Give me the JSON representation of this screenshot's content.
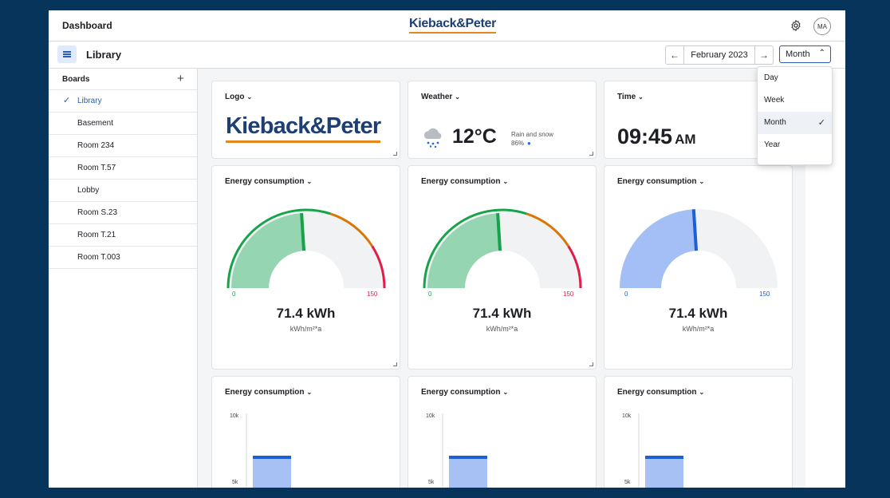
{
  "header": {
    "title": "Dashboard",
    "brand": "Kieback&Peter",
    "avatar": "MA",
    "settings_icon": "gear-icon"
  },
  "subheader": {
    "menu_icon": "hamburger-icon",
    "title": "Library",
    "date": "February 2023",
    "prev_icon": "arrow-left-icon",
    "next_icon": "arrow-right-icon",
    "period": "Month"
  },
  "period_menu": {
    "options": [
      "Day",
      "Week",
      "Month",
      "Year"
    ],
    "selected": "Month"
  },
  "sidebar": {
    "title": "Boards",
    "add_icon": "plus-icon",
    "items": [
      {
        "label": "Library",
        "active": true
      },
      {
        "label": "Basement"
      },
      {
        "label": "Room 234"
      },
      {
        "label": "Room T.57"
      },
      {
        "label": "Lobby"
      },
      {
        "label": "Room S.23"
      },
      {
        "label": "Room T.21"
      },
      {
        "label": "Room T.003"
      }
    ]
  },
  "widgets": {
    "logo": {
      "title": "Logo",
      "brand": "Kieback&Peter"
    },
    "weather": {
      "title": "Weather",
      "temp": "12°C",
      "desc": "Rain and snow",
      "precip": "86%",
      "icon": "rain-snow-cloud-icon"
    },
    "time": {
      "title": "Time",
      "time": "09:45",
      "ampm": "AM"
    },
    "gauges": [
      {
        "title": "Energy consumption",
        "value": "71.4 kWh",
        "unit": "kWh/m²*a",
        "min": "0",
        "max": "150",
        "level": 0.48,
        "style": "traffic"
      },
      {
        "title": "Energy consumption",
        "value": "71.4 kWh",
        "unit": "kWh/m²*a",
        "min": "0",
        "max": "150",
        "level": 0.48,
        "style": "traffic"
      },
      {
        "title": "Energy consumption",
        "value": "71.4 kWh",
        "unit": "kWh/m²*a",
        "min": "0",
        "max": "150",
        "level": 0.48,
        "style": "blue"
      }
    ],
    "bars": [
      {
        "title": "Energy consumption",
        "ticks": [
          "10k",
          "5k"
        ]
      },
      {
        "title": "Energy consumption",
        "ticks": [
          "10k",
          "5k"
        ]
      },
      {
        "title": "Energy consumption",
        "ticks": [
          "10k",
          "5k"
        ]
      }
    ]
  },
  "colors": {
    "brand_blue": "#1d3f73",
    "brand_orange": "#e5871a",
    "accent": "#2a5db0",
    "gauge_green": "#16a34a",
    "gauge_fill_green": "#95d5b2",
    "gauge_orange": "#d97706",
    "gauge_red": "#e11d48",
    "gauge_blue": "#a3bff5",
    "gauge_blue_needle": "#1d5fd6"
  }
}
